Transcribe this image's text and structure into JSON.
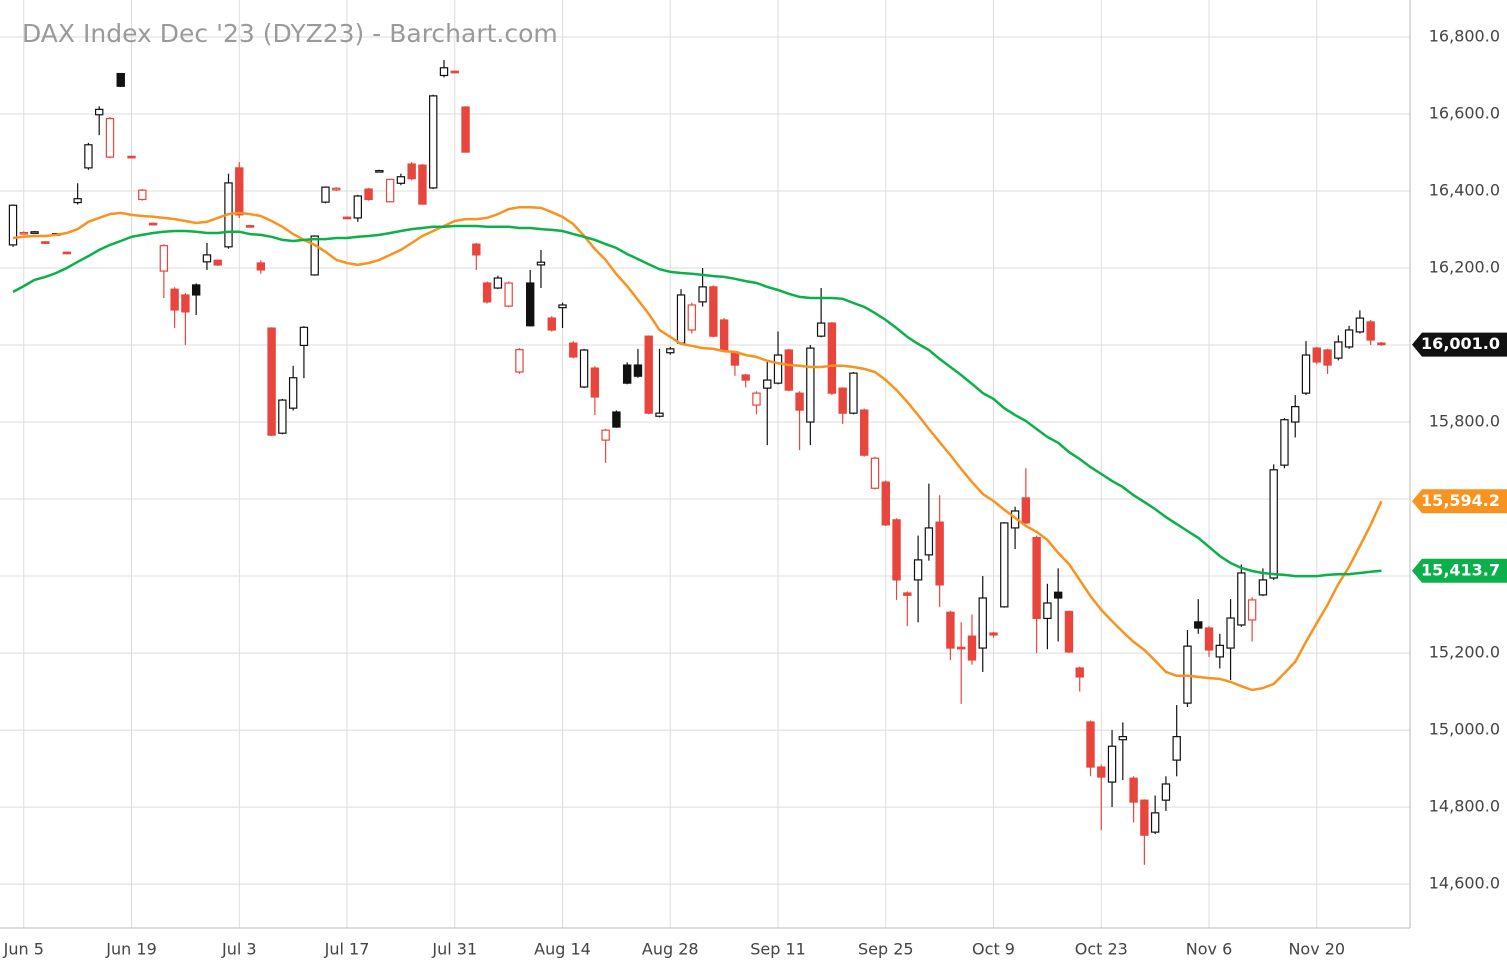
{
  "chart_data": {
    "type": "candlestick",
    "title": "DAX Index Dec '23 (DYZ23) - Barchart.com",
    "categories": [
      null,
      "Jun 5",
      null,
      null,
      null,
      null,
      null,
      null,
      null,
      null,
      null,
      "Jun 19",
      null,
      null,
      null,
      null,
      null,
      null,
      null,
      null,
      null,
      "Jul 3",
      null,
      null,
      null,
      null,
      null,
      null,
      null,
      null,
      null,
      "Jul 17",
      null,
      null,
      null,
      null,
      null,
      null,
      null,
      null,
      null,
      "Jul 31",
      null,
      null,
      null,
      null,
      null,
      null,
      null,
      null,
      null,
      "Aug 14",
      null,
      null,
      null,
      null,
      null,
      null,
      null,
      null,
      null,
      "Aug 28",
      null,
      null,
      null,
      null,
      null,
      null,
      null,
      null,
      null,
      "Sep 11",
      null,
      null,
      null,
      null,
      null,
      null,
      null,
      null,
      null,
      "Sep 25",
      null,
      null,
      null,
      null,
      null,
      null,
      null,
      null,
      null,
      "Oct 9",
      null,
      null,
      null,
      null,
      null,
      null,
      null,
      null,
      null,
      "Oct 23",
      null,
      null,
      null,
      null,
      null,
      null,
      null,
      null,
      null,
      "Nov 6",
      null,
      null,
      null,
      null,
      null,
      null,
      null,
      null,
      null,
      "Nov 20",
      null,
      null,
      null,
      null,
      null,
      null
    ],
    "open": [
      16260,
      16290,
      16292,
      16268,
      16287,
      16241,
      16370,
      16460,
      16598,
      16488,
      16705,
      16490,
      16378,
      16316,
      16192,
      16145,
      16130,
      16156,
      16216,
      16220,
      16255,
      16460,
      16310,
      16213,
      16044,
      15771,
      15836,
      15999,
      16182,
      16371,
      16403,
      16332,
      16330,
      16405,
      16451,
      16372,
      16420,
      16470,
      16467,
      16408,
      16700,
      16711,
      16618,
      16262,
      16161,
      16148,
      16101,
      15930,
      16161,
      16208,
      16070,
      16097,
      16005,
      15891,
      15940,
      15753,
      15826,
      15948,
      15948,
      16023,
      15815,
      15980,
      16005,
      16039,
      16112,
      16151,
      16065,
      15982,
      15922,
      15844,
      15888,
      15901,
      15987,
      15875,
      15800,
      16023,
      16057,
      15888,
      15823,
      15831,
      15628,
      15644,
      15546,
      15356,
      15390,
      15455,
      15540,
      15306,
      15215,
      15244,
      15213,
      15252,
      15320,
      15525,
      15603,
      15500,
      15290,
      15358,
      15308,
      15161,
      15021,
      14904,
      14865,
      14975,
      14875,
      14818,
      14735,
      14818,
      14922,
      15070,
      15281,
      15265,
      15190,
      15213,
      15273,
      15286,
      15351,
      15395,
      15688,
      15800,
      15875,
      15992,
      15987,
      15966,
      15995,
      16034,
      16060,
      16005
    ],
    "high": [
      16365,
      16295,
      16296,
      16270,
      16291,
      16243,
      16420,
      16525,
      16620,
      16592,
      16706,
      16492,
      16405,
      16318,
      16262,
      16150,
      16135,
      16160,
      16265,
      16222,
      16445,
      16475,
      16312,
      16220,
      16046,
      15860,
      15946,
      16049,
      16285,
      16412,
      16410,
      16334,
      16390,
      16408,
      16455,
      16432,
      16445,
      16475,
      16470,
      16650,
      16740,
      16713,
      16620,
      16265,
      16165,
      16180,
      16165,
      15992,
      16195,
      16247,
      16075,
      16110,
      16010,
      15990,
      15945,
      15782,
      15830,
      15955,
      15990,
      16025,
      15990,
      15995,
      16145,
      16110,
      16200,
      16155,
      16070,
      15985,
      15925,
      15880,
      15960,
      16035,
      15990,
      15880,
      16000,
      16148,
      16060,
      15890,
      15930,
      15835,
      15710,
      15648,
      15550,
      15360,
      15505,
      15640,
      15610,
      15310,
      15280,
      15300,
      15400,
      15255,
      15540,
      15580,
      15680,
      15505,
      15380,
      15420,
      15310,
      15165,
      15025,
      14910,
      15000,
      15020,
      14880,
      14820,
      14830,
      14880,
      15065,
      15260,
      15340,
      15270,
      15250,
      15340,
      15430,
      15345,
      15420,
      15690,
      15810,
      15870,
      16010,
      15995,
      15990,
      16025,
      16050,
      16090,
      16065,
      16008
    ],
    "low": [
      16255,
      16288,
      16290,
      16262,
      16285,
      16236,
      16365,
      16455,
      16545,
      16485,
      16670,
      16485,
      16375,
      16311,
      16122,
      16044,
      16000,
      16078,
      16195,
      16205,
      16250,
      16330,
      16306,
      16185,
      15764,
      15768,
      15830,
      15914,
      16180,
      16368,
      16400,
      16327,
      16320,
      16375,
      16449,
      16370,
      16415,
      16428,
      16365,
      16405,
      16695,
      16706,
      16500,
      16195,
      16108,
      16145,
      16098,
      15925,
      16048,
      16148,
      16035,
      16044,
      15965,
      15888,
      15818,
      15694,
      15785,
      15898,
      15915,
      15820,
      15812,
      15975,
      16000,
      16030,
      16100,
      16020,
      15984,
      15920,
      15890,
      15820,
      15740,
      15898,
      15880,
      15727,
      15740,
      16020,
      15870,
      15795,
      15820,
      15710,
      15625,
      15530,
      15338,
      15270,
      15280,
      15440,
      15320,
      15182,
      15068,
      15170,
      15151,
      15240,
      15318,
      15470,
      15535,
      15200,
      15210,
      15230,
      15200,
      15100,
      14880,
      14740,
      14800,
      14870,
      14760,
      14650,
      14730,
      14790,
      14880,
      15060,
      15250,
      15190,
      15160,
      15130,
      15268,
      15230,
      15348,
      15390,
      15680,
      15760,
      15870,
      15950,
      15925,
      15960,
      15990,
      16030,
      16000,
      15998
    ],
    "close": [
      16363,
      16292,
      16294,
      16264,
      16289,
      16238,
      16380,
      16520,
      16612,
      16588,
      16672,
      16487,
      16402,
      16313,
      16258,
      16091,
      16086,
      16130,
      16234,
      16208,
      16421,
      16338,
      16308,
      16195,
      15766,
      15857,
      15915,
      16046,
      16283,
      16410,
      16407,
      16329,
      16387,
      16378,
      16453,
      16430,
      16437,
      16432,
      16366,
      16647,
      16720,
      16708,
      16501,
      16234,
      16112,
      16174,
      16161,
      15988,
      16050,
      16215,
      16039,
      16104,
      15969,
      15987,
      15865,
      15779,
      15787,
      15901,
      15919,
      15823,
      15823,
      15990,
      16130,
      16104,
      16151,
      16023,
      15987,
      15948,
      15909,
      15875,
      15909,
      15974,
      15883,
      15831,
      15992,
      16057,
      15875,
      15823,
      15927,
      15714,
      15706,
      15533,
      15390,
      15350,
      15442,
      15525,
      15377,
      15213,
      15212,
      15182,
      15343,
      15247,
      15538,
      15569,
      15538,
      15290,
      15330,
      15343,
      15203,
      15138,
      14904,
      14878,
      14958,
      14983,
      14813,
      14727,
      14785,
      14860,
      14983,
      15218,
      15265,
      15208,
      15220,
      15291,
      15408,
      15338,
      15390,
      15676,
      15806,
      15840,
      15974,
      15956,
      15948,
      16008,
      16039,
      16070,
      16013,
      16001
    ],
    "last_label": "16,001.0",
    "up_color": "#111111",
    "down_color": "#e8453c",
    "overlays": [
      {
        "color": "#f7931e",
        "last_label": "15,594.2",
        "values": [
          16278,
          16281,
          16283,
          16283,
          16286,
          16291,
          16301,
          16320,
          16330,
          16340,
          16343,
          16338,
          16335,
          16333,
          16330,
          16327,
          16322,
          16317,
          16320,
          16330,
          16340,
          16343,
          16340,
          16335,
          16322,
          16307,
          16288,
          16273,
          16260,
          16242,
          16221,
          16213,
          16208,
          16213,
          16221,
          16234,
          16247,
          16265,
          16283,
          16296,
          16309,
          16322,
          16327,
          16327,
          16330,
          16340,
          16353,
          16358,
          16358,
          16356,
          16345,
          16333,
          16314,
          16283,
          16249,
          16221,
          16184,
          16153,
          16117,
          16081,
          16039,
          16021,
          16003,
          15998,
          15992,
          15990,
          15984,
          15982,
          15974,
          15969,
          15959,
          15953,
          15948,
          15946,
          15943,
          15943,
          15946,
          15946,
          15943,
          15938,
          15930,
          15909,
          15883,
          15852,
          15818,
          15782,
          15748,
          15714,
          15678,
          15644,
          15613,
          15595,
          15572,
          15551,
          15530,
          15515,
          15494,
          15460,
          15431,
          15390,
          15348,
          15312,
          15283,
          15255,
          15229,
          15208,
          15180,
          15151,
          15141,
          15141,
          15138,
          15135,
          15133,
          15125,
          15114,
          15104,
          15109,
          15120,
          15148,
          15177,
          15229,
          15278,
          15325,
          15379,
          15424,
          15478,
          15533,
          15594.2
        ]
      },
      {
        "color": "#0cb04a",
        "last_label": "15,413.7",
        "values": [
          16138,
          16153,
          16169,
          16177,
          16187,
          16200,
          16216,
          16231,
          16247,
          16260,
          16270,
          16281,
          16286,
          16291,
          16294,
          16296,
          16296,
          16294,
          16291,
          16291,
          16294,
          16294,
          16288,
          16286,
          16281,
          16273,
          16270,
          16273,
          16275,
          16275,
          16278,
          16278,
          16281,
          16283,
          16286,
          16291,
          16296,
          16301,
          16304,
          16307,
          16307,
          16309,
          16309,
          16309,
          16307,
          16307,
          16307,
          16304,
          16304,
          16301,
          16299,
          16296,
          16288,
          16281,
          16273,
          16262,
          16252,
          16236,
          16223,
          16210,
          16197,
          16190,
          16187,
          16185,
          16182,
          16179,
          16177,
          16172,
          16166,
          16161,
          16151,
          16143,
          16133,
          16125,
          16122,
          16122,
          16122,
          16120,
          16109,
          16099,
          16083,
          16065,
          16044,
          16021,
          16003,
          15987,
          15964,
          15943,
          15922,
          15899,
          15875,
          15860,
          15836,
          15818,
          15803,
          15782,
          15761,
          15746,
          15722,
          15704,
          15683,
          15665,
          15647,
          15631,
          15610,
          15592,
          15574,
          15553,
          15535,
          15517,
          15499,
          15476,
          15452,
          15434,
          15421,
          15413,
          15408,
          15405,
          15403,
          15400,
          15400,
          15400,
          15403,
          15405,
          15405,
          15408,
          15411,
          15413.7
        ]
      }
    ],
    "ylim": [
      14486,
      16896
    ],
    "yticks": [
      {
        "value": 14600,
        "label": "14,600.0"
      },
      {
        "value": 14800,
        "label": "14,800.0"
      },
      {
        "value": 15000,
        "label": "15,000.0"
      },
      {
        "value": 15200,
        "label": "15,200.0"
      },
      {
        "value": 15400,
        "label": "15,400.0"
      },
      {
        "value": 15600,
        "label": "15,600.0"
      },
      {
        "value": 15800,
        "label": "15,800.0"
      },
      {
        "value": 16000,
        "label": "16,000.0"
      },
      {
        "value": 16200,
        "label": "16,200.0"
      },
      {
        "value": 16400,
        "label": "16,400.0"
      },
      {
        "value": 16600,
        "label": "16,600.0"
      },
      {
        "value": 16800,
        "label": "16,800.0"
      }
    ],
    "grid": true
  }
}
